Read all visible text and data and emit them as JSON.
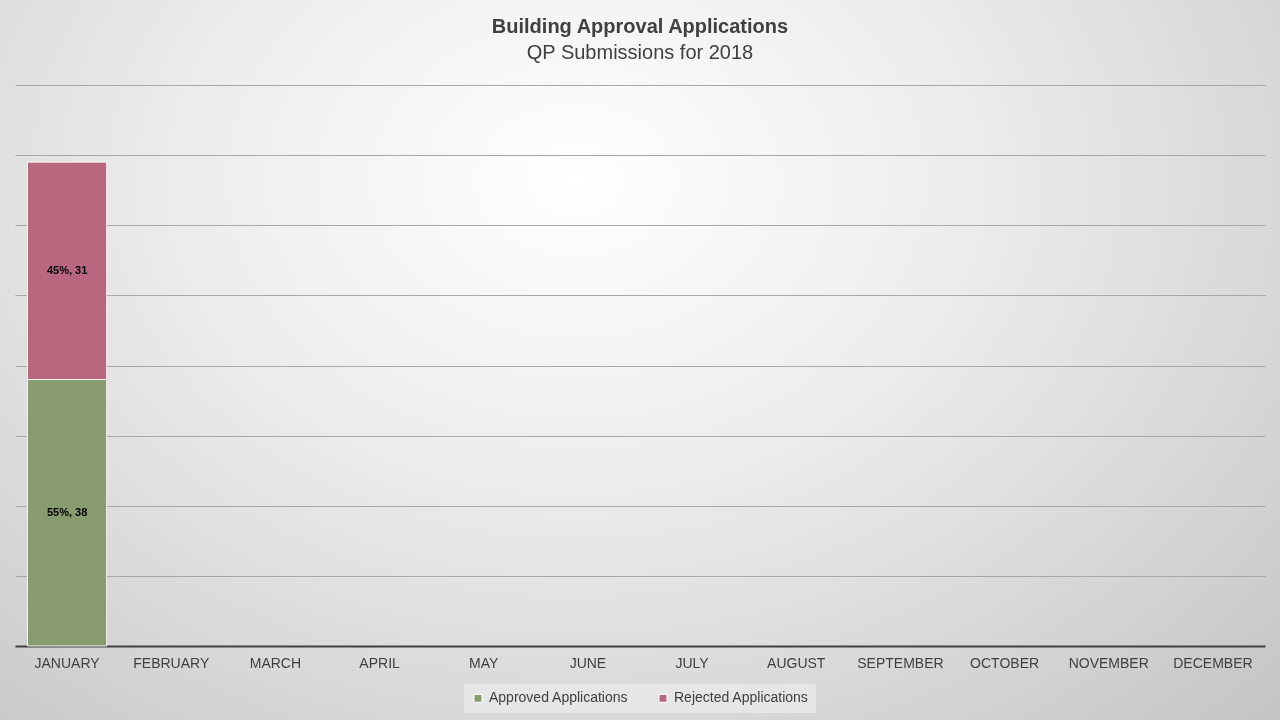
{
  "chart_data": {
    "type": "bar",
    "title": "Building Approval Applications",
    "subtitle": "QP Submissions for 2018",
    "categories": [
      "JANUARY",
      "FEBRUARY",
      "MARCH",
      "APRIL",
      "MAY",
      "JUNE",
      "JULY",
      "AUGUST",
      "SEPTEMBER",
      "OCTOBER",
      "NOVEMBER",
      "DECEMBER"
    ],
    "stacked": true,
    "series": [
      {
        "name": "Approved Applications",
        "color": "#889c70",
        "values": [
          38,
          null,
          null,
          null,
          null,
          null,
          null,
          null,
          null,
          null,
          null,
          null
        ],
        "value_labels": [
          "55%, 38",
          null,
          null,
          null,
          null,
          null,
          null,
          null,
          null,
          null,
          null,
          null
        ]
      },
      {
        "name": "Rejected Applications",
        "color": "#b9667f",
        "values": [
          31,
          null,
          null,
          null,
          null,
          null,
          null,
          null,
          null,
          null,
          null,
          null
        ],
        "value_labels": [
          "45%, 31",
          null,
          null,
          null,
          null,
          null,
          null,
          null,
          null,
          null,
          null,
          null
        ]
      }
    ],
    "ylim": [
      0,
      80
    ],
    "yticks": [
      {
        "value": 0,
        "label": null
      },
      {
        "value": 10,
        "label": null
      },
      {
        "value": 20,
        "label": null
      },
      {
        "value": 30,
        "label": null
      },
      {
        "value": 40,
        "label": null
      },
      {
        "value": 50,
        "label": null
      },
      {
        "value": 60,
        "label": null
      },
      {
        "value": 70,
        "label": null
      },
      {
        "value": 80,
        "label": null
      }
    ],
    "grid": "y",
    "legend": "bottom",
    "tick_labels": "x"
  }
}
